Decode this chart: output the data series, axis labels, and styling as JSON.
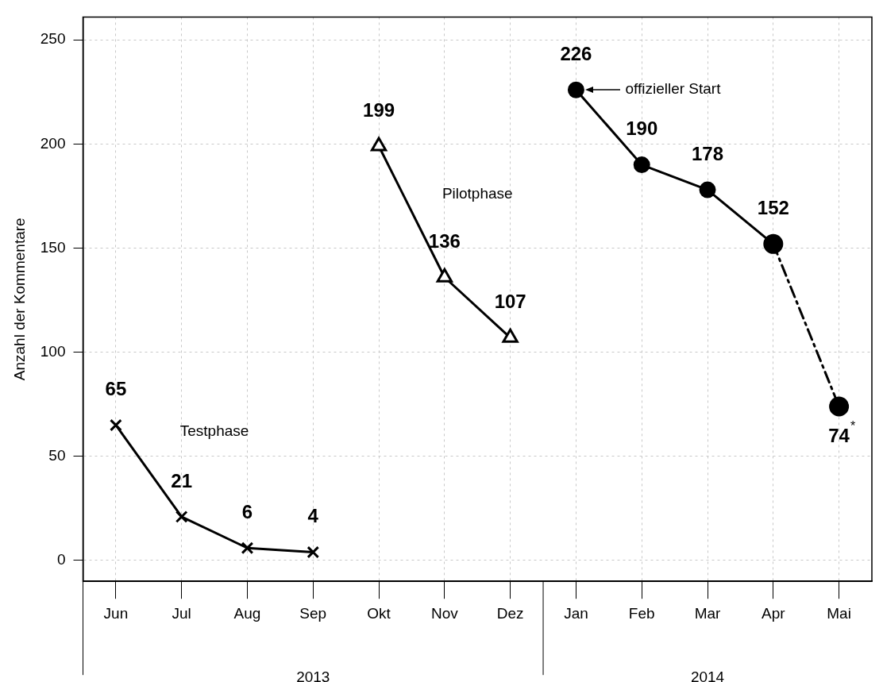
{
  "chart_data": {
    "type": "line",
    "ylabel": "Anzahl der Kommentare",
    "categories": [
      "Jun",
      "Jul",
      "Aug",
      "Sep",
      "Okt",
      "Nov",
      "Dez",
      "Jan",
      "Feb",
      "Mar",
      "Apr",
      "Mai"
    ],
    "series": [
      {
        "color": "#000000",
        "marker": "cross",
        "line_style": "solid",
        "values": [
          65,
          21,
          6,
          4,
          null,
          null,
          null,
          null,
          null,
          null,
          null,
          null
        ],
        "value_labels": [
          "65",
          "21",
          "6",
          "4",
          null,
          null,
          null,
          null,
          null,
          null,
          null,
          null
        ]
      },
      {
        "color": "#000000",
        "marker": "triangle",
        "line_style": "solid",
        "values": [
          null,
          null,
          null,
          null,
          199,
          136,
          107,
          null,
          null,
          null,
          null,
          null
        ],
        "value_labels": [
          null,
          null,
          null,
          null,
          "199",
          "136",
          "107",
          null,
          null,
          null,
          null,
          null
        ]
      },
      {
        "color": "#000000",
        "marker": "circle",
        "line_style": "solid",
        "values": [
          null,
          null,
          null,
          null,
          null,
          null,
          null,
          226,
          190,
          178,
          152,
          null
        ],
        "value_labels": [
          null,
          null,
          null,
          null,
          null,
          null,
          null,
          "226",
          "190",
          "178",
          "152",
          null
        ]
      },
      {
        "color": "#000000",
        "marker": "circle",
        "line_style": "dashed",
        "values": [
          null,
          null,
          null,
          null,
          null,
          null,
          null,
          null,
          null,
          null,
          152,
          74
        ],
        "value_labels": [
          null,
          null,
          null,
          null,
          null,
          null,
          null,
          null,
          null,
          null,
          null,
          "74$^{*}$"
        ]
      }
    ],
    "annotations": [
      "Testphase",
      "Pilotphase",
      "offizieller Start",
      "2013",
      "2014"
    ],
    "ylim": [
      -10,
      261
    ],
    "yticks": [
      0,
      50,
      100,
      150,
      200,
      250
    ],
    "grid": true,
    "legend": false
  }
}
